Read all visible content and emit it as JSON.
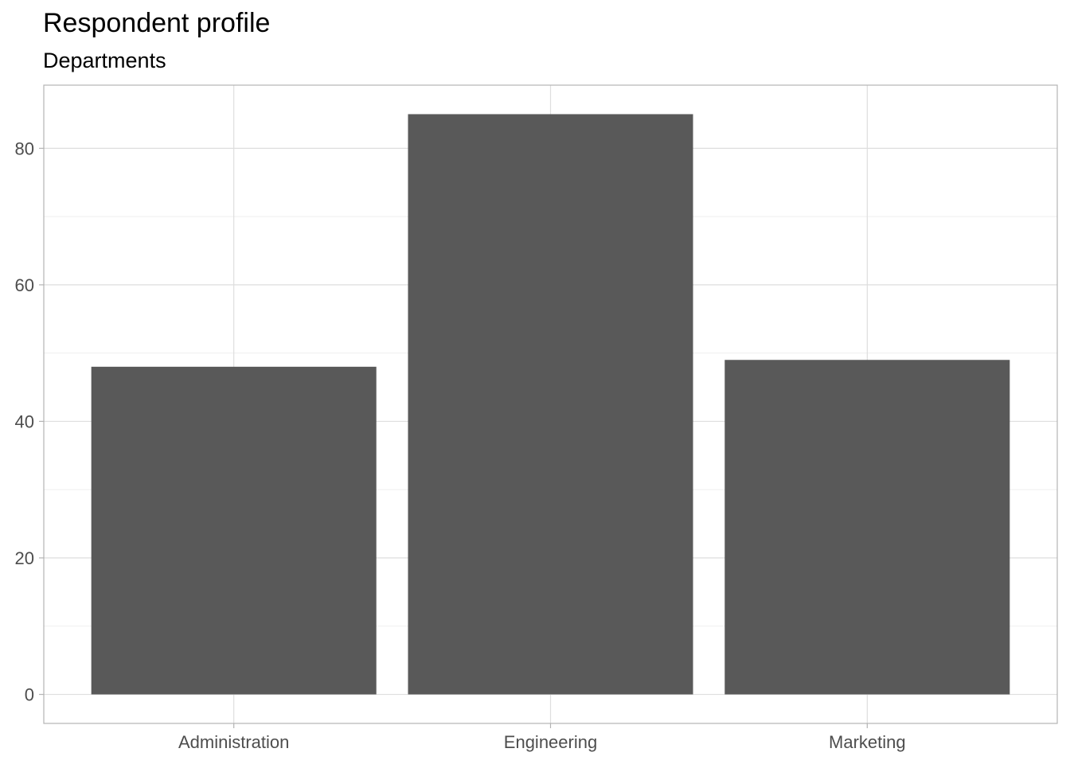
{
  "chart_data": {
    "type": "bar",
    "title": "Respondent profile",
    "subtitle": "Departments",
    "xlabel": "",
    "ylabel": "",
    "categories": [
      "Administration",
      "Engineering",
      "Marketing"
    ],
    "values": [
      48,
      85,
      49
    ],
    "ylim": [
      -4.25,
      89.25
    ],
    "y_ticks": [
      0,
      20,
      40,
      60,
      80
    ],
    "y_minor_ticks": [
      10,
      30,
      50,
      70
    ],
    "grid": true,
    "legend": "none",
    "colors": {
      "bar": "#595959",
      "grid_major": "#dedede",
      "grid_minor": "#efefef",
      "panel_border": "#b3b3b3",
      "axis_text": "#4d4d4d",
      "title": "#000000"
    }
  }
}
